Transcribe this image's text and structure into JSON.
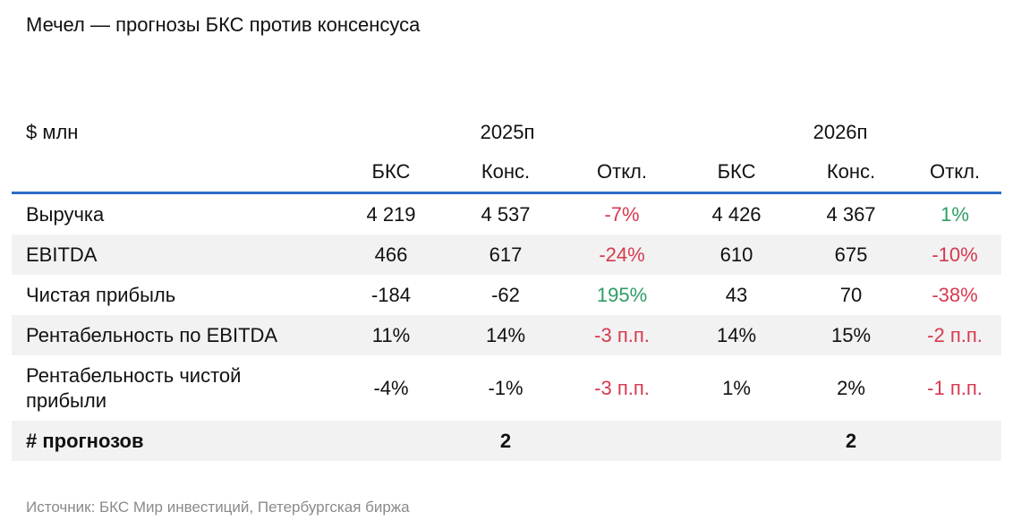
{
  "title": "Мечел — прогнозы БКС против консенсуса",
  "unit_label": "$ млн",
  "years": [
    "2025п",
    "2026п"
  ],
  "subheaders": [
    "БКС",
    "Конс.",
    "Откл.",
    "БКС",
    "Конс.",
    "Откл."
  ],
  "rows": [
    {
      "label": "Выручка",
      "values": [
        "4 219",
        "4 537",
        "-7%",
        "4 426",
        "4 367",
        "1%"
      ],
      "dev_colors": [
        "#d6394f",
        "#2e9d63"
      ]
    },
    {
      "label": "EBITDA",
      "values": [
        "466",
        "617",
        "-24%",
        "610",
        "675",
        "-10%"
      ],
      "dev_colors": [
        "#d6394f",
        "#d6394f"
      ]
    },
    {
      "label": "Чистая прибыль",
      "values": [
        "-184",
        "-62",
        "195%",
        "43",
        "70",
        "-38%"
      ],
      "dev_colors": [
        "#2e9d63",
        "#d6394f"
      ]
    },
    {
      "label": "Рентабельность по EBITDA",
      "values": [
        "11%",
        "14%",
        "-3 п.п.",
        "14%",
        "15%",
        "-2 п.п."
      ],
      "dev_colors": [
        "#d6394f",
        "#d6394f"
      ]
    },
    {
      "label_line1": "Рентабельность чистой",
      "label_line2": "прибыли",
      "values": [
        "-4%",
        "-1%",
        "-3 п.п.",
        "1%",
        "2%",
        "-1 п.п."
      ],
      "dev_colors": [
        "#d6394f",
        "#d6394f"
      ]
    }
  ],
  "total": {
    "label": "# прогнозов",
    "values": [
      "2",
      "2"
    ]
  },
  "source": "Источник: БКС Мир инвестиций, Петербургская биржа",
  "colors": {
    "accent_line": "#2e6cc7",
    "negative": "#d6394f",
    "positive": "#2e9d63",
    "shade": "#f2f2f2"
  }
}
